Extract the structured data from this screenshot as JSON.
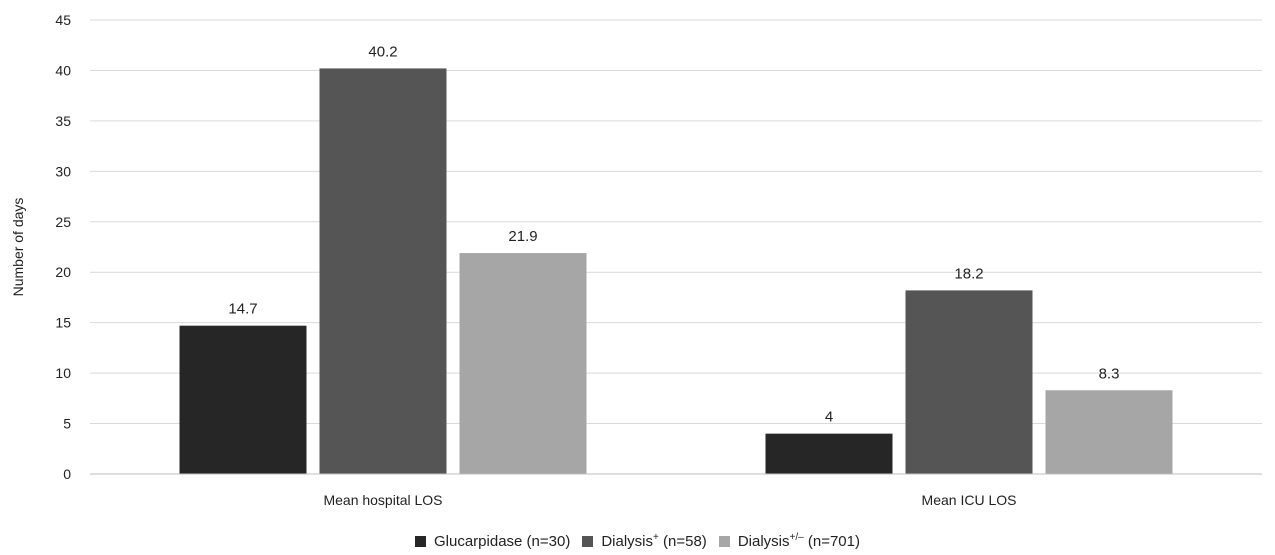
{
  "chart_data": {
    "type": "bar",
    "categories": [
      "Mean hospital LOS",
      "Mean ICU LOS"
    ],
    "series": [
      {
        "name": "Glucarpidase (n=30)",
        "name_base": "Glucarpidase (n=30)",
        "name_sup": "",
        "name_tail": "",
        "color": "#262626",
        "values": [
          14.7,
          4
        ],
        "labels": [
          "14.7",
          "4"
        ]
      },
      {
        "name": "Dialysis+ (n=58)",
        "name_base": "Dialysis",
        "name_sup": "+",
        "name_tail": " (n=58)",
        "color": "#555555",
        "values": [
          40.2,
          18.2
        ],
        "labels": [
          "40.2",
          "18.2"
        ]
      },
      {
        "name": "Dialysis+/– (n=701)",
        "name_base": "Dialysis",
        "name_sup": "+/–",
        "name_tail": " (n=701)",
        "color": "#a6a6a6",
        "values": [
          21.9,
          8.3
        ],
        "labels": [
          "21.9",
          "8.3"
        ]
      }
    ],
    "ylabel": "Number of days",
    "xlabel": "",
    "ylim": [
      0,
      45
    ],
    "yticks": [
      0,
      5,
      10,
      15,
      20,
      25,
      30,
      35,
      40,
      45
    ],
    "grid": true,
    "gridColor": "#d9d9d9",
    "legend_position": "bottom"
  }
}
